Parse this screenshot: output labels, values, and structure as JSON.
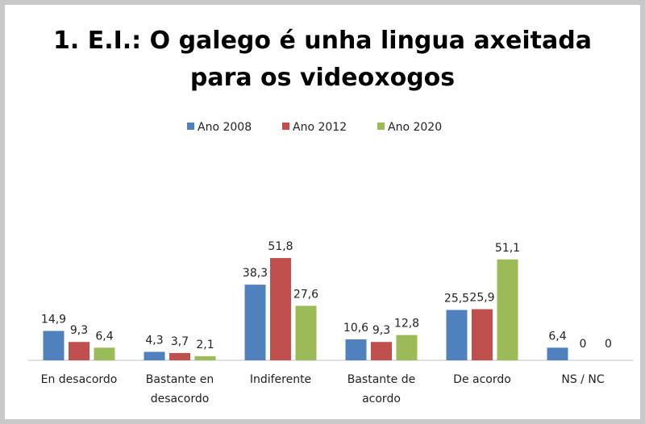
{
  "chart_data": {
    "type": "bar",
    "title": "1. E.I.: O galego é unha lingua axeitada para os videoxogos",
    "categories": [
      "En desacordo",
      "Bastante en desacordo",
      "Indiferente",
      "Bastante de acordo",
      "De acordo",
      "NS / NC"
    ],
    "series": [
      {
        "name": "Ano 2008",
        "color": "#4f81bd",
        "values": [
          14.9,
          4.3,
          38.3,
          10.6,
          25.5,
          6.4
        ],
        "value_labels": [
          "14,9",
          "4,3",
          "38,3",
          "10,6",
          "25,5",
          "6,4"
        ]
      },
      {
        "name": "Ano 2012",
        "color": "#c0504d",
        "values": [
          9.3,
          3.7,
          51.8,
          9.3,
          25.9,
          0
        ],
        "value_labels": [
          "9,3",
          "3,7",
          "51,8",
          "9,3",
          "25,9",
          "0"
        ]
      },
      {
        "name": "Ano 2020",
        "color": "#9bbb59",
        "values": [
          6.4,
          2.1,
          27.6,
          12.8,
          51.1,
          0
        ],
        "value_labels": [
          "6,4",
          "2,1",
          "27,6",
          "12,8",
          "51,1",
          "0"
        ]
      }
    ],
    "legend": "top"
  }
}
